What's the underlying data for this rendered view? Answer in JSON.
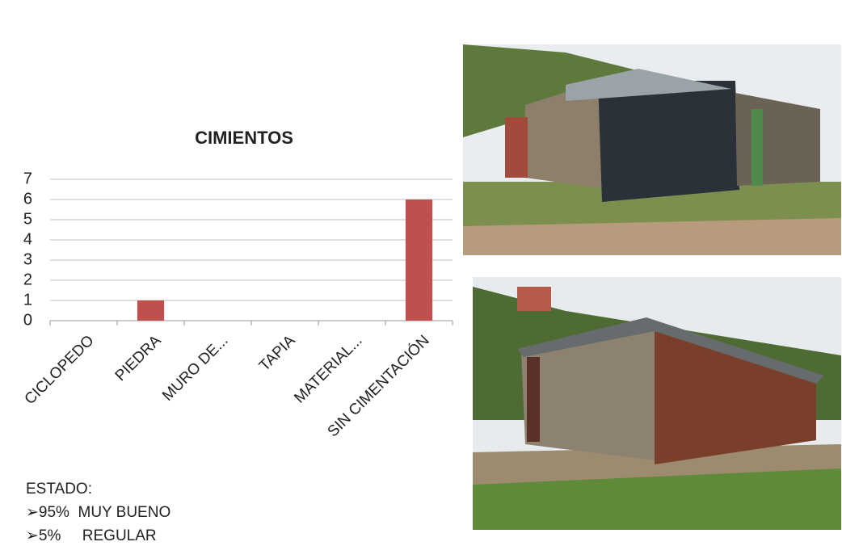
{
  "chart_data": {
    "type": "bar",
    "title": "CIMIENTOS",
    "categories": [
      "CICLOPEDO",
      "PIEDRA",
      "MURO DE...",
      "TAPIA",
      "MATERIAL...",
      "SIN CIMENTACIÓN"
    ],
    "values": [
      0,
      1,
      0,
      0,
      0,
      6
    ],
    "color": "#c0504d",
    "ylim": [
      0,
      7
    ],
    "yticks": [
      0,
      1,
      2,
      3,
      4,
      5,
      6,
      7
    ],
    "grid": true
  },
  "notes": [
    "ESTADO:",
    "➢95%  MUY BUENO",
    "➢5%     REGULAR"
  ]
}
